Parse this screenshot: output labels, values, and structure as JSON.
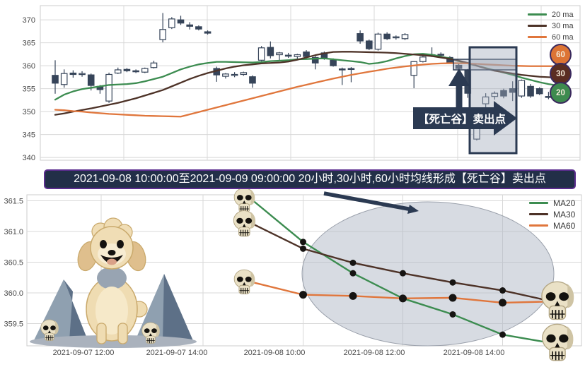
{
  "banner": {
    "text": "2021-09-08 10:00:00至2021-09-09 09:00:00 20小时,30小时,60小时均线形成【死亡谷】卖出点"
  },
  "colors": {
    "ma20": "#3c8c50",
    "ma30": "#4d3227",
    "ma60": "#e0763c",
    "candle": "#364459",
    "candle_up_fill": "#ffffff",
    "annotation": "#2b3a52",
    "grid": "#d8d8d8",
    "axis_text": "#4a4a4a",
    "plot_border": "#cccccc",
    "highlight_fill": "rgba(160,170,186,0.42)",
    "ellipse_fill": "rgba(176,184,198,0.5)",
    "ellipse_stroke": "#9aa0ab",
    "badge_border": "#3b2a5e",
    "badge_60_bg": "#dd7434",
    "badge_30_bg": "#5a2d22",
    "badge_20_bg": "#3e8b4f",
    "marker": "#161412"
  },
  "icons": {
    "skull": "skull-icon",
    "dog": "poodle-dog-illustration",
    "mountains": "mountains-illustration",
    "arrow": "annotation-arrow-icon"
  },
  "chart_data": [
    {
      "type": "candlestick",
      "title": "",
      "xlabel": "",
      "ylabel": "",
      "grid": true,
      "legend_position": "upper right",
      "legend": [
        "20 ma",
        "30 ma",
        "60 ma"
      ],
      "badges": [
        "60",
        "30",
        "20"
      ],
      "annotation": "【死亡谷】卖出点",
      "highlight": "death-valley crossover zone (20ma crosses below 30ma and 60ma)",
      "ylim": [
        339.4,
        373.1
      ],
      "y_ticks": [
        340,
        345,
        350,
        355,
        360,
        365,
        370
      ],
      "candles_ohlc": [
        [
          357.9,
          361.2,
          353.9,
          356.2
        ],
        [
          355.9,
          359.2,
          355.2,
          358.3
        ],
        [
          358.4,
          359.0,
          357.4,
          358.1
        ],
        [
          358.1,
          358.8,
          357.6,
          358.3
        ],
        [
          358.0,
          358.3,
          354.6,
          355.7
        ],
        [
          355.5,
          355.8,
          353.9,
          354.8
        ],
        [
          352.3,
          358.5,
          351.9,
          358.1
        ],
        [
          358.4,
          359.6,
          358.2,
          359.1
        ],
        [
          359.2,
          359.5,
          358.6,
          358.9
        ],
        [
          358.9,
          359.2,
          358.4,
          358.8
        ],
        [
          358.6,
          359.6,
          358.4,
          359.4
        ],
        [
          359.6,
          361.1,
          359.4,
          360.6
        ],
        [
          365.7,
          371.5,
          365.1,
          367.9
        ],
        [
          368.3,
          370.6,
          368.0,
          370.2
        ],
        [
          370.0,
          370.9,
          368.9,
          369.3
        ],
        [
          368.9,
          369.5,
          367.9,
          368.6
        ],
        [
          368.5,
          368.8,
          367.7,
          368.0
        ],
        [
          367.4,
          367.7,
          366.8,
          367.1
        ],
        [
          359.4,
          359.8,
          356.5,
          358.0
        ],
        [
          357.7,
          358.4,
          357.2,
          358.2
        ],
        [
          358.0,
          358.6,
          357.5,
          358.1
        ],
        [
          358.1,
          358.7,
          357.8,
          358.5
        ],
        [
          357.6,
          357.9,
          355.2,
          356.2
        ],
        [
          361.2,
          364.3,
          361.0,
          363.9
        ],
        [
          364.0,
          365.3,
          361.6,
          362.2
        ],
        [
          362.4,
          363.0,
          361.2,
          362.8
        ],
        [
          362.3,
          362.8,
          361.7,
          362.1
        ],
        [
          362.0,
          362.6,
          361.5,
          362.4
        ],
        [
          363.0,
          363.4,
          361.8,
          362.0
        ],
        [
          361.8,
          362.1,
          359.2,
          360.6
        ],
        [
          362.8,
          363.1,
          361.3,
          361.5
        ],
        [
          361.2,
          361.6,
          359.8,
          360.0
        ],
        [
          359.3,
          359.6,
          355.8,
          359.1
        ],
        [
          359.4,
          359.7,
          356.4,
          359.3
        ],
        [
          367.0,
          367.7,
          364.8,
          365.4
        ],
        [
          365.4,
          365.7,
          363.4,
          363.7
        ],
        [
          363.6,
          367.2,
          363.3,
          366.9
        ],
        [
          366.9,
          367.3,
          365.6,
          365.9
        ],
        [
          366.2,
          366.6,
          365.7,
          366.3
        ],
        [
          365.9,
          367.1,
          365.6,
          366.8
        ],
        [
          357.9,
          361.0,
          355.1,
          360.9
        ],
        [
          360.9,
          362.2,
          360.7,
          361.9
        ],
        [
          362.4,
          364.0,
          361.9,
          362.2
        ],
        [
          362.5,
          362.9,
          361.9,
          362.4
        ],
        [
          361.8,
          362.1,
          360.4,
          360.6
        ],
        [
          360.1,
          360.4,
          359.1,
          359.4
        ],
        [
          359.0,
          359.3,
          353.0,
          354.0
        ],
        [
          344.0,
          347.9,
          343.7,
          346.6
        ],
        [
          351.7,
          354.0,
          350.9,
          353.2
        ],
        [
          353.3,
          354.4,
          352.6,
          354.0
        ],
        [
          354.6,
          355.0,
          352.9,
          353.4
        ],
        [
          355.0,
          356.6,
          352.3,
          354.2
        ],
        [
          353.4,
          357.0,
          353.0,
          356.8
        ],
        [
          355.5,
          356.0,
          353.0,
          353.4
        ],
        [
          355.0,
          355.3,
          353.6,
          353.9
        ],
        [
          353.3,
          354.3,
          352.7,
          353.1
        ],
        [
          352.9,
          353.3,
          352.2,
          352.5
        ]
      ],
      "series": [
        {
          "name": "20 ma",
          "color": "#3c8c50",
          "values": [
            352.6,
            353.7,
            354.4,
            354.9,
            355.2,
            355.5,
            355.8,
            355.9,
            356.0,
            356.2,
            356.6,
            357.1,
            357.6,
            358.4,
            359.2,
            359.8,
            360.3,
            360.6,
            360.85,
            360.85,
            360.8,
            360.75,
            360.7,
            360.8,
            361.0,
            361.1,
            361.2,
            361.4,
            361.45,
            361.55,
            361.6,
            361.4,
            361.2,
            361.0,
            360.8,
            360.4,
            360.6,
            361.0,
            361.6,
            362.1,
            362.5,
            362.6,
            362.4,
            362.0,
            361.6,
            361.0,
            360.5,
            360.0,
            359.5,
            359.0,
            358.5,
            358.0,
            357.4,
            356.9,
            356.4,
            356.0,
            355.7
          ]
        },
        {
          "name": "30 ma",
          "color": "#4d3227",
          "values": [
            349.3,
            349.6,
            350.0,
            350.35,
            350.7,
            351.1,
            351.5,
            351.9,
            352.4,
            352.9,
            353.5,
            354.1,
            354.7,
            355.5,
            356.3,
            357.1,
            357.8,
            358.4,
            358.9,
            359.4,
            359.8,
            360.1,
            360.3,
            360.5,
            360.6,
            360.7,
            360.9,
            361.3,
            361.8,
            362.3,
            362.7,
            363.0,
            363.05,
            363.05,
            363.0,
            362.95,
            362.9,
            362.85,
            362.75,
            362.6,
            362.45,
            362.3,
            362.1,
            361.8,
            361.5,
            361.1,
            360.6,
            360.0,
            359.4,
            358.9,
            358.6,
            358.3,
            358.0,
            357.8,
            357.6,
            357.5,
            357.4
          ]
        },
        {
          "name": "60 ma",
          "color": "#e0763c",
          "values": [
            350.4,
            350.3,
            350.1,
            350.0,
            349.8,
            349.65,
            349.5,
            349.4,
            349.3,
            349.2,
            349.1,
            349.05,
            349.0,
            348.95,
            348.9,
            349.4,
            349.9,
            350.4,
            350.9,
            351.4,
            351.9,
            352.4,
            352.9,
            353.4,
            353.9,
            354.4,
            354.9,
            355.4,
            355.85,
            356.3,
            356.75,
            357.2,
            357.6,
            358.0,
            358.35,
            358.7,
            359.0,
            359.35,
            359.6,
            359.85,
            360.05,
            360.25,
            360.4,
            360.5,
            360.55,
            360.55,
            360.5,
            360.4,
            360.3,
            360.2,
            360.1,
            360.0,
            359.95,
            359.9,
            359.9,
            359.9,
            359.9
          ]
        }
      ]
    },
    {
      "type": "line",
      "title": "",
      "grid": true,
      "legend_position": "upper right",
      "legend": [
        "MA20",
        "MA30",
        "MA60"
      ],
      "ylim": [
        359.14,
        361.6
      ],
      "y_ticks": [
        "359.5",
        "360.0",
        "360.5",
        "361.0",
        "361.5"
      ],
      "x_tick_labels": [
        "2021-09-07 12:00",
        "2021-09-07 14:00",
        "2021-09-08 10:00",
        "2021-09-08 12:00",
        "2021-09-08 14:00"
      ],
      "x": [
        "09:00",
        "10:00",
        "11:00",
        "12:00",
        "13:00",
        "14:00",
        "15:00"
      ],
      "series": [
        {
          "name": "MA20",
          "color": "#3c8c50",
          "values": [
            361.5,
            360.83,
            360.32,
            359.91,
            359.65,
            359.32,
            359.18
          ]
        },
        {
          "name": "MA30",
          "color": "#4d3227",
          "values": [
            361.12,
            360.72,
            360.49,
            360.32,
            360.17,
            360.04,
            359.86
          ]
        },
        {
          "name": "MA60",
          "color": "#e0763c",
          "values": [
            360.17,
            359.97,
            359.95,
            359.91,
            359.92,
            359.84,
            359.86
          ]
        }
      ]
    }
  ]
}
